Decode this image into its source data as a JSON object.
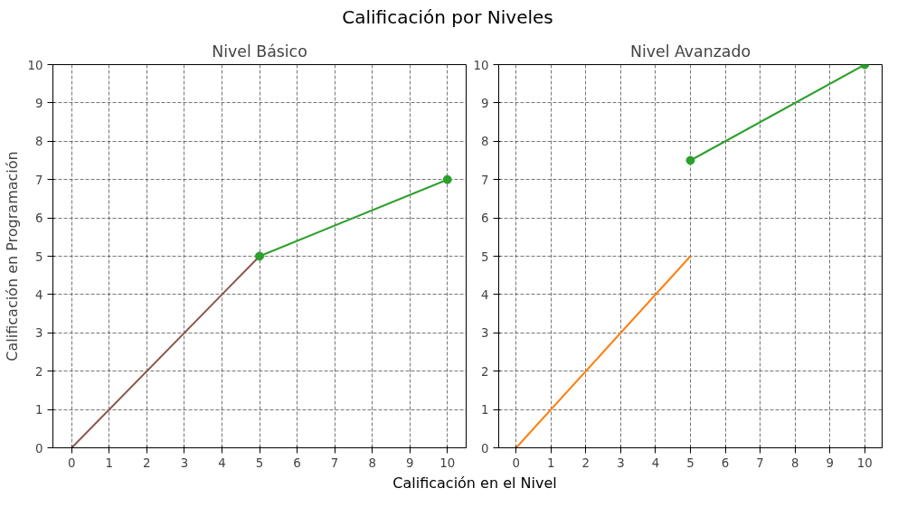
{
  "chart_data": [
    {
      "type": "line",
      "title": "Nivel Básico",
      "annotations": [
        "Calificación por Niveles"
      ],
      "xlabel": "Calificación en el Nivel",
      "ylabel": "Calificación en Programación",
      "xlim": [
        -0.5,
        10.5
      ],
      "ylim": [
        0,
        10
      ],
      "xticks": [
        0,
        1,
        2,
        3,
        4,
        5,
        6,
        7,
        8,
        9,
        10
      ],
      "yticks": [
        0,
        1,
        2,
        3,
        4,
        5,
        6,
        7,
        8,
        9,
        10
      ],
      "grid": true,
      "series": [
        {
          "color": "#8c564b",
          "x": [
            0,
            5
          ],
          "values": [
            0,
            5
          ]
        },
        {
          "color": "#2ca02c",
          "x": [
            5,
            10
          ],
          "values": [
            5,
            7
          ],
          "marker": "circle"
        }
      ]
    },
    {
      "type": "line",
      "title": "Nivel Avanzado",
      "xlim": [
        -0.5,
        10.5
      ],
      "ylim": [
        0,
        10
      ],
      "xticks": [
        0,
        1,
        2,
        3,
        4,
        5,
        6,
        7,
        8,
        9,
        10
      ],
      "yticks": [
        0,
        1,
        2,
        3,
        4,
        5,
        6,
        7,
        8,
        9,
        10
      ],
      "grid": true,
      "series": [
        {
          "color": "#ff7f0e",
          "x": [
            0,
            5
          ],
          "values": [
            0,
            5
          ]
        },
        {
          "color": "#2ca02c",
          "x": [
            5,
            10
          ],
          "values": [
            7.5,
            10
          ],
          "marker": "circle"
        }
      ]
    }
  ]
}
